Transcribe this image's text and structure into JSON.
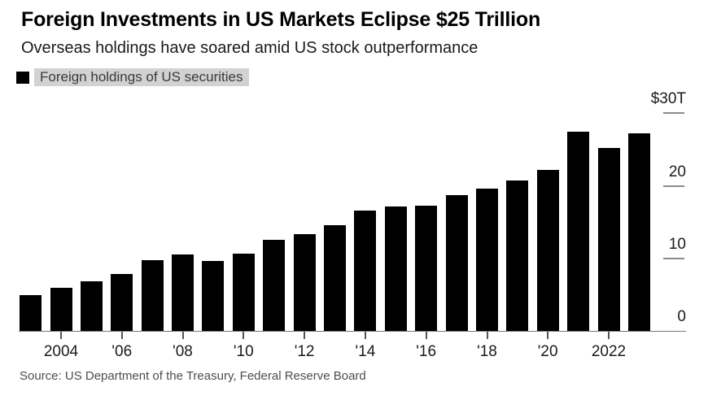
{
  "header": {
    "title": "Foreign Investments in US Markets Eclipse $25 Trillion",
    "subtitle": "Overseas holdings have soared amid US stock outperformance"
  },
  "legend": {
    "label": "Foreign holdings of US securities",
    "marker": "black-square",
    "marker_color": "#000000",
    "highlight_color": "#d2d2d2"
  },
  "source": {
    "text": "Source: US Department of the Treasury, Federal Reserve Board"
  },
  "chart_data": {
    "type": "bar",
    "title": "Foreign Investments in US Markets Eclipse $25 Trillion",
    "series_name": "Foreign holdings of US securities",
    "unit": "USD trillions",
    "categories": [
      2003,
      2004,
      2005,
      2006,
      2007,
      2008,
      2009,
      2010,
      2011,
      2012,
      2013,
      2014,
      2015,
      2016,
      2017,
      2018,
      2019,
      2020,
      2021,
      2022,
      2023
    ],
    "values": [
      4.9,
      6.0,
      6.9,
      7.8,
      9.8,
      10.5,
      9.7,
      10.7,
      12.6,
      13.4,
      14.6,
      16.6,
      17.2,
      17.3,
      18.7,
      19.6,
      20.8,
      22.2,
      27.5,
      25.2,
      27.2
    ],
    "ylim": [
      0,
      30
    ],
    "grid": "right-side tick dashes only",
    "legend_position": "top-left",
    "bar_color": "#000000",
    "y_axis": {
      "ticks": [
        {
          "label": "$30T",
          "value": 30,
          "dash": true
        },
        {
          "label": "20",
          "value": 20,
          "dash": true
        },
        {
          "label": "10",
          "value": 10,
          "dash": true
        },
        {
          "label": "0",
          "value": 0,
          "dash": false
        }
      ]
    },
    "x_axis": {
      "ticks": [
        {
          "label": "2004",
          "year": 2004
        },
        {
          "label": "'06",
          "year": 2006
        },
        {
          "label": "'08",
          "year": 2008
        },
        {
          "label": "'10",
          "year": 2010
        },
        {
          "label": "'12",
          "year": 2012
        },
        {
          "label": "'14",
          "year": 2014
        },
        {
          "label": "'16",
          "year": 2016
        },
        {
          "label": "'18",
          "year": 2018
        },
        {
          "label": "'20",
          "year": 2020
        },
        {
          "label": "2022",
          "year": 2022
        }
      ]
    }
  }
}
